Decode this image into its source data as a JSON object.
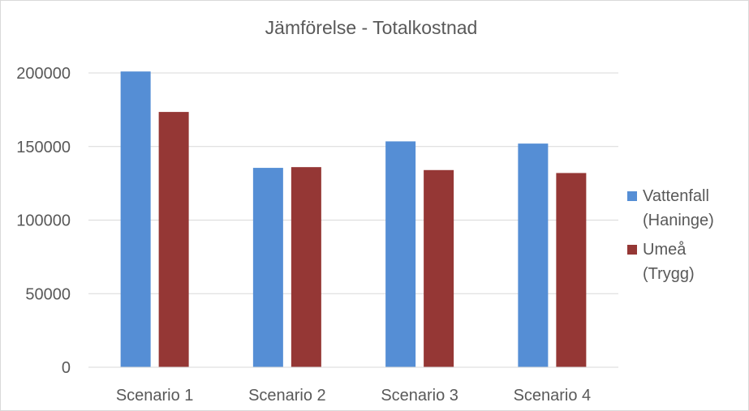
{
  "chart_data": {
    "type": "bar",
    "title": "Jämförelse - Totalkostnad",
    "xlabel": "",
    "ylabel": "",
    "categories": [
      "Scenario 1",
      "Scenario 2",
      "Scenario 3",
      "Scenario 4"
    ],
    "series": [
      {
        "name": "Vattenfall (Haninge)",
        "color": "#558ED5",
        "values": [
          201000,
          135500,
          153500,
          152000
        ]
      },
      {
        "name": "Umeå (Trygg)",
        "color": "#953735",
        "values": [
          173500,
          136000,
          134000,
          132000
        ]
      }
    ],
    "ylim": [
      0,
      200000
    ],
    "yticks": [
      "0",
      "50000",
      "100000",
      "150000",
      "200000"
    ],
    "grid": true,
    "legend_position": "right"
  }
}
